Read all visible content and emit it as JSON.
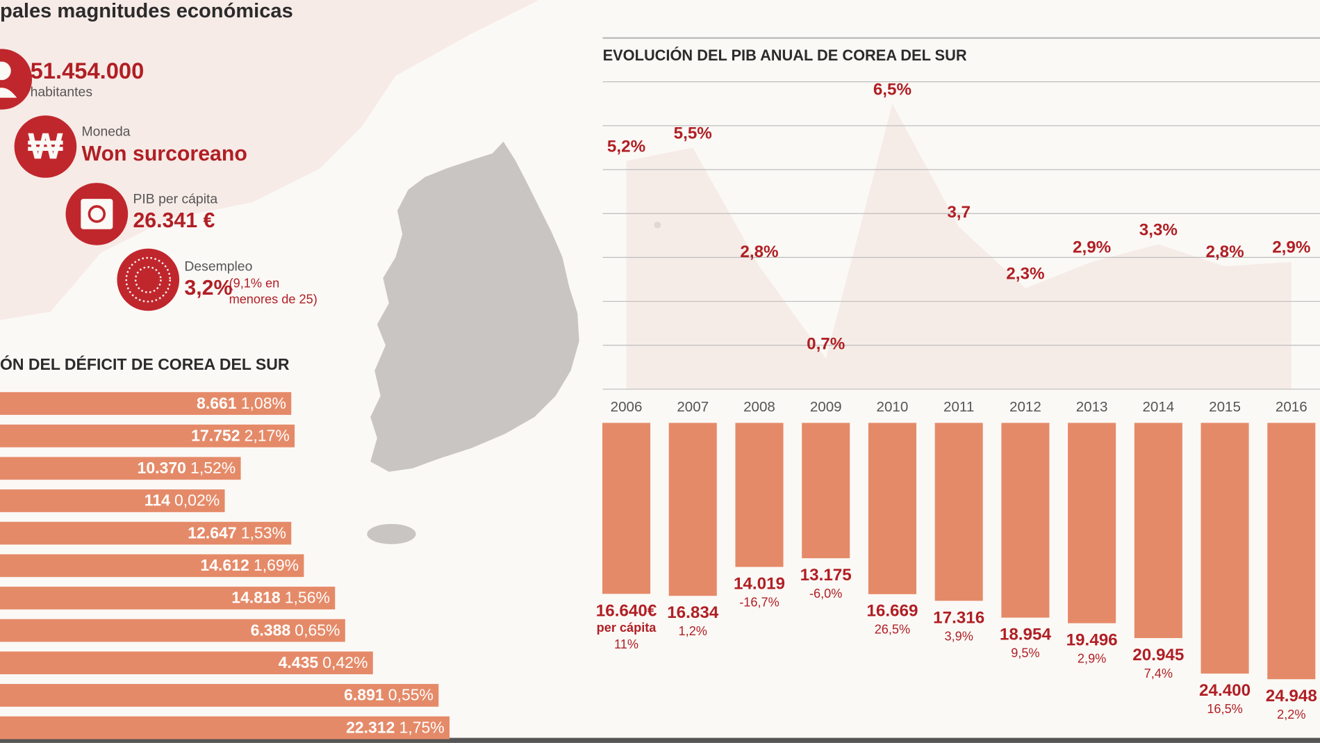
{
  "header": {
    "title": "pales magnitudes económicas"
  },
  "stats": {
    "population": "51.454.000",
    "population_label": "habitantes",
    "currency_label": "Moneda",
    "currency_symbol": "₩",
    "currency": "Won surcoreano",
    "gdp_per_capita_label": "PIB per cápita",
    "gdp_per_capita": "26.341 €",
    "unemployment_label": "Desempleo",
    "unemployment": "3,2%",
    "unemployment_note": [
      "(9,1% en",
      "menores de 25)"
    ]
  },
  "deficit": {
    "title": "ÓN DEL DÉFICIT DE COREA DEL SUR",
    "rows": [
      [
        "8.661",
        "1,08%"
      ],
      [
        "17.752",
        "2,17%"
      ],
      [
        "10.370",
        "1,52%"
      ],
      [
        "114",
        "0,02%"
      ],
      [
        "12.647",
        "1,53%"
      ],
      [
        "14.612",
        "1,69%"
      ],
      [
        "14.818",
        "1,56%"
      ],
      [
        "6.388",
        "0,65%"
      ],
      [
        "4.435",
        "0,42%"
      ],
      [
        "6.891",
        "0,55%"
      ],
      [
        "22.312",
        "1,75%"
      ]
    ]
  },
  "chart_data": [
    {
      "type": "area",
      "title": "EVOLUCIÓN DEL PIB ANUAL DE COREA DEL SUR",
      "categories": [
        "2006",
        "2007",
        "2008",
        "2009",
        "2010",
        "2011",
        "2012",
        "2013",
        "2014",
        "2015",
        "2016"
      ],
      "values": [
        5.2,
        5.5,
        2.8,
        0.7,
        6.5,
        3.7,
        2.3,
        2.9,
        3.3,
        2.8,
        2.9
      ],
      "value_labels": [
        "5,2%",
        "5,5%",
        "2,8%",
        "0,7%",
        "6,5%",
        "3,7",
        "2,3%",
        "2,9%",
        "3,3%",
        "2,8%",
        "2,9%"
      ],
      "ylim": [
        0,
        7
      ],
      "yticks": [
        0,
        1,
        2,
        3,
        4,
        5,
        6,
        7
      ],
      "grid": true,
      "color": "#f4e2dd"
    },
    {
      "type": "bar",
      "values": [
        16640,
        16834,
        14019,
        13175,
        16669,
        17316,
        18954,
        19496,
        20945,
        24400,
        24948
      ],
      "value_labels": [
        "16.640€",
        "16.834",
        "14.019",
        "13.175",
        "16.669",
        "17.316",
        "18.954",
        "19.496",
        "20.945",
        "24.400",
        "24.948"
      ],
      "unit_note": "per cápita",
      "growth": [
        11,
        1.2,
        -16.7,
        -6.0,
        26.5,
        3.9,
        9.5,
        2.9,
        7.4,
        16.5,
        2.2
      ],
      "growth_labels": [
        "11%",
        "1,2%",
        "-16,7%",
        "-6,0%",
        "26,5%",
        "3,9%",
        "9,5%",
        "2,9%",
        "7,4%",
        "16,5%",
        "2,2%"
      ],
      "ylim": [
        0,
        25000
      ],
      "color": "#e58a68"
    }
  ]
}
